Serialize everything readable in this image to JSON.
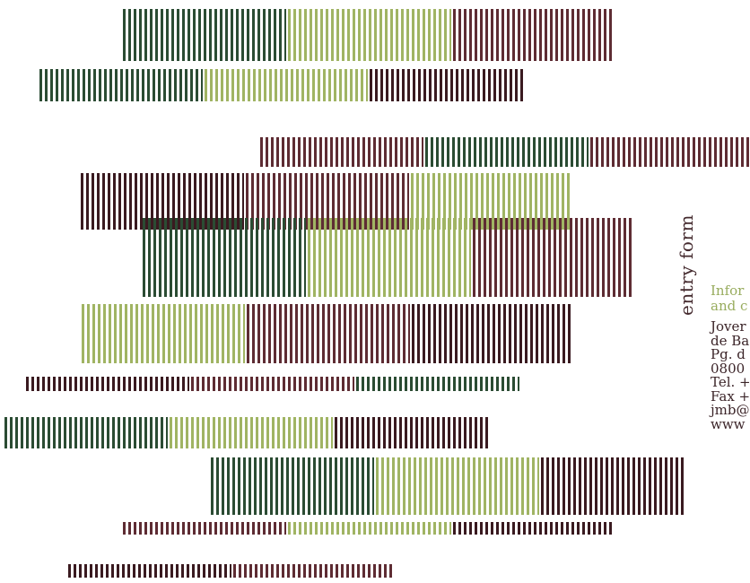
{
  "colors": {
    "dark_green": "#2b4c33",
    "light_green": "#a0b463",
    "maroon": "#5e2c33",
    "dark_maroon": "#3a1a20"
  },
  "entry": {
    "title": "entry form"
  },
  "info": {
    "heading_line1": "Infor",
    "heading_line2": "and c"
  },
  "contact": {
    "lines": [
      "Jover",
      "de Ba",
      "Pg. d",
      "0800",
      "Tel. +",
      "Fax +",
      "jmb@",
      "www"
    ]
  }
}
